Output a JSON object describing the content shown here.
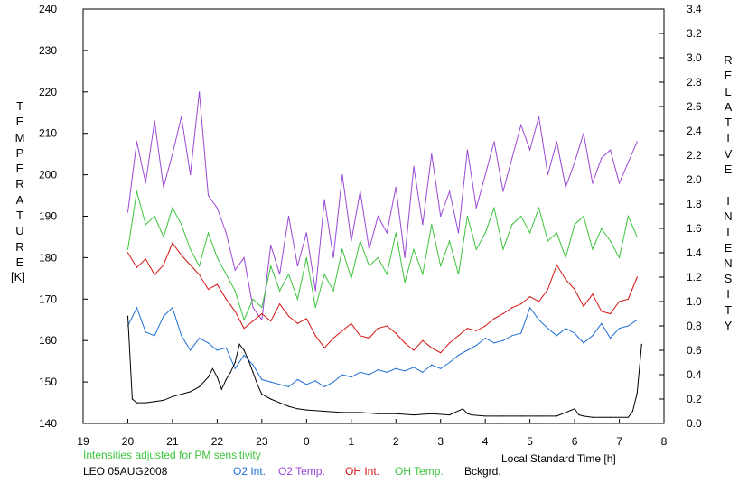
{
  "chart_data": {
    "type": "line",
    "xlabel": "Local Standard Time [h]",
    "ylabel_left": "TEMPERATURE",
    "ylabel_left_unit": "[K]",
    "ylabel_right": "RELATIVE INTENSITY",
    "note": "Intensities adjusted for PM sensitivity",
    "station": "LEO 05AUG2008",
    "x_ticks": [
      "19",
      "20",
      "21",
      "22",
      "23",
      "0",
      "1",
      "2",
      "3",
      "4",
      "5",
      "6",
      "7",
      "8"
    ],
    "x_range": [
      19,
      32
    ],
    "ylim_left": [
      140,
      240
    ],
    "ylim_right": [
      0.0,
      3.4
    ],
    "left_ticks": [
      "140",
      "150",
      "160",
      "170",
      "180",
      "190",
      "200",
      "210",
      "220",
      "230",
      "240"
    ],
    "right_ticks": [
      "0.0",
      "0.2",
      "0.4",
      "0.6",
      "0.8",
      "1.0",
      "1.2",
      "1.4",
      "1.6",
      "1.8",
      "2.0",
      "2.2",
      "2.4",
      "2.6",
      "2.8",
      "3.0",
      "3.2",
      "3.4"
    ],
    "grid": false,
    "legend_position": "bottom",
    "series": [
      {
        "name": "O2 Int.",
        "axis": "right",
        "color": "#1f6fd6",
        "x": [
          20.0,
          20.2,
          20.4,
          20.6,
          20.8,
          21.0,
          21.2,
          21.4,
          21.6,
          21.8,
          22.0,
          22.2,
          22.4,
          22.6,
          22.8,
          23.0,
          23.2,
          23.4,
          23.6,
          23.8,
          24.0,
          24.2,
          24.4,
          24.6,
          24.8,
          25.0,
          25.2,
          25.4,
          25.6,
          25.8,
          26.0,
          26.2,
          26.4,
          26.6,
          26.8,
          27.0,
          27.2,
          27.4,
          27.6,
          27.8,
          28.0,
          28.2,
          28.4,
          28.6,
          28.8,
          29.0,
          29.2,
          29.4,
          29.6,
          29.8,
          30.0,
          30.2,
          30.4,
          30.6,
          30.8,
          31.0,
          31.2,
          31.4
        ],
        "y": [
          0.8,
          0.95,
          0.75,
          0.72,
          0.88,
          0.95,
          0.72,
          0.6,
          0.7,
          0.66,
          0.6,
          0.62,
          0.45,
          0.56,
          0.48,
          0.36,
          0.34,
          0.32,
          0.3,
          0.36,
          0.32,
          0.35,
          0.3,
          0.34,
          0.4,
          0.38,
          0.42,
          0.4,
          0.44,
          0.42,
          0.45,
          0.43,
          0.46,
          0.42,
          0.48,
          0.45,
          0.5,
          0.56,
          0.6,
          0.64,
          0.7,
          0.66,
          0.68,
          0.72,
          0.74,
          0.95,
          0.85,
          0.78,
          0.72,
          0.78,
          0.74,
          0.66,
          0.72,
          0.82,
          0.7,
          0.78,
          0.8,
          0.85
        ]
      },
      {
        "name": "O2 Temp.",
        "axis": "left",
        "color": "#9a48d6",
        "x": [
          20.0,
          20.2,
          20.4,
          20.6,
          20.8,
          21.0,
          21.2,
          21.4,
          21.6,
          21.8,
          22.0,
          22.2,
          22.4,
          22.6,
          22.8,
          23.0,
          23.2,
          23.4,
          23.6,
          23.8,
          24.0,
          24.2,
          24.4,
          24.6,
          24.8,
          25.0,
          25.2,
          25.4,
          25.6,
          25.8,
          26.0,
          26.2,
          26.4,
          26.6,
          26.8,
          27.0,
          27.2,
          27.4,
          27.6,
          27.8,
          28.0,
          28.2,
          28.4,
          28.6,
          28.8,
          29.0,
          29.2,
          29.4,
          29.6,
          29.8,
          30.0,
          30.2,
          30.4,
          30.6,
          30.8,
          31.0,
          31.2,
          31.4
        ],
        "y": [
          191,
          208,
          198,
          213,
          197,
          205,
          214,
          200,
          220,
          195,
          192,
          186,
          177,
          180,
          168,
          165,
          183,
          176,
          190,
          178,
          186,
          172,
          194,
          180,
          200,
          184,
          196,
          182,
          190,
          186,
          197,
          180,
          202,
          188,
          205,
          190,
          196,
          186,
          206,
          192,
          200,
          208,
          196,
          204,
          212,
          206,
          214,
          200,
          208,
          197,
          203,
          210,
          198,
          204,
          206,
          198,
          203,
          208
        ]
      },
      {
        "name": "OH Int.",
        "axis": "right",
        "color": "#d41212",
        "x": [
          20.0,
          20.2,
          20.4,
          20.6,
          20.8,
          21.0,
          21.2,
          21.4,
          21.6,
          21.8,
          22.0,
          22.2,
          22.4,
          22.6,
          22.8,
          23.0,
          23.2,
          23.4,
          23.6,
          23.8,
          24.0,
          24.2,
          24.4,
          24.6,
          24.8,
          25.0,
          25.2,
          25.4,
          25.6,
          25.8,
          26.0,
          26.2,
          26.4,
          26.6,
          26.8,
          27.0,
          27.2,
          27.4,
          27.6,
          27.8,
          28.0,
          28.2,
          28.4,
          28.6,
          28.8,
          29.0,
          29.2,
          29.4,
          29.6,
          29.8,
          30.0,
          30.2,
          30.4,
          30.6,
          30.8,
          31.0,
          31.2,
          31.4
        ],
        "y": [
          1.4,
          1.28,
          1.35,
          1.22,
          1.3,
          1.48,
          1.38,
          1.3,
          1.22,
          1.1,
          1.14,
          1.02,
          0.92,
          0.78,
          0.84,
          0.9,
          0.84,
          0.98,
          0.88,
          0.82,
          0.86,
          0.72,
          0.62,
          0.7,
          0.76,
          0.82,
          0.72,
          0.7,
          0.78,
          0.8,
          0.74,
          0.66,
          0.6,
          0.68,
          0.62,
          0.58,
          0.66,
          0.72,
          0.78,
          0.76,
          0.8,
          0.86,
          0.9,
          0.95,
          0.98,
          1.04,
          1.0,
          1.1,
          1.3,
          1.18,
          1.1,
          0.96,
          1.06,
          0.92,
          0.9,
          1.0,
          1.02,
          1.2
        ]
      },
      {
        "name": "OH Temp.",
        "axis": "left",
        "color": "#3cc43c",
        "x": [
          20.0,
          20.2,
          20.4,
          20.6,
          20.8,
          21.0,
          21.2,
          21.4,
          21.6,
          21.8,
          22.0,
          22.2,
          22.4,
          22.6,
          22.8,
          23.0,
          23.2,
          23.4,
          23.6,
          23.8,
          24.0,
          24.2,
          24.4,
          24.6,
          24.8,
          25.0,
          25.2,
          25.4,
          25.6,
          25.8,
          26.0,
          26.2,
          26.4,
          26.6,
          26.8,
          27.0,
          27.2,
          27.4,
          27.6,
          27.8,
          28.0,
          28.2,
          28.4,
          28.6,
          28.8,
          29.0,
          29.2,
          29.4,
          29.6,
          29.8,
          30.0,
          30.2,
          30.4,
          30.6,
          30.8,
          31.0,
          31.2,
          31.4
        ],
        "y": [
          182,
          196,
          188,
          190,
          185,
          192,
          188,
          182,
          178,
          186,
          180,
          176,
          172,
          165,
          170,
          168,
          178,
          172,
          176,
          170,
          180,
          168,
          176,
          172,
          182,
          175,
          184,
          178,
          180,
          176,
          186,
          174,
          182,
          176,
          188,
          178,
          184,
          176,
          190,
          182,
          186,
          192,
          182,
          188,
          190,
          186,
          192,
          184,
          186,
          180,
          188,
          190,
          182,
          187,
          184,
          180,
          190,
          185
        ]
      },
      {
        "name": "Bckgrd.",
        "axis": "right",
        "color": "#000000",
        "x": [
          20.0,
          20.1,
          20.2,
          20.4,
          20.6,
          20.8,
          21.0,
          21.2,
          21.4,
          21.6,
          21.8,
          21.9,
          22.0,
          22.1,
          22.2,
          22.3,
          22.4,
          22.5,
          22.6,
          22.7,
          22.8,
          22.9,
          23.0,
          23.2,
          23.4,
          23.6,
          23.8,
          24.0,
          24.4,
          24.8,
          25.2,
          25.6,
          26.0,
          26.4,
          26.8,
          27.2,
          27.5,
          27.6,
          27.7,
          28.0,
          28.4,
          28.8,
          29.2,
          29.6,
          30.0,
          30.1,
          30.2,
          30.4,
          30.8,
          31.2,
          31.3,
          31.4,
          31.5
        ],
        "y": [
          0.88,
          0.2,
          0.17,
          0.17,
          0.18,
          0.19,
          0.22,
          0.24,
          0.26,
          0.3,
          0.38,
          0.45,
          0.38,
          0.28,
          0.36,
          0.42,
          0.5,
          0.65,
          0.6,
          0.52,
          0.42,
          0.32,
          0.24,
          0.2,
          0.17,
          0.14,
          0.12,
          0.11,
          0.1,
          0.09,
          0.09,
          0.08,
          0.08,
          0.07,
          0.08,
          0.07,
          0.12,
          0.08,
          0.07,
          0.06,
          0.06,
          0.06,
          0.06,
          0.06,
          0.12,
          0.07,
          0.06,
          0.05,
          0.05,
          0.05,
          0.1,
          0.25,
          0.65
        ]
      }
    ]
  }
}
